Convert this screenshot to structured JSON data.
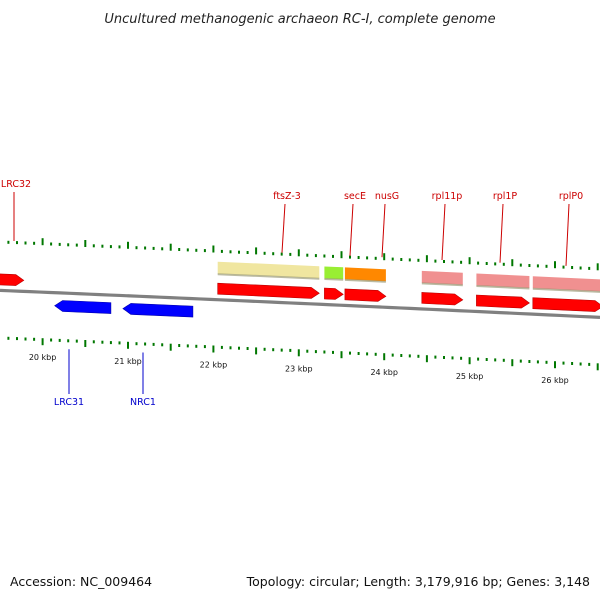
{
  "title": "Uncultured methanogenic archaeon RC-I, complete genome",
  "footer": {
    "accession": "Accession: NC_009464",
    "summary": "Topology: circular; Length: 3,179,916 bp; Genes: 3,148"
  },
  "colors": {
    "forward_gene": "#ff0000",
    "reverse_gene": "#0000ff",
    "forward_label": "#cc0000",
    "reverse_label": "#0000cc",
    "tick": "#007700",
    "backbone": "#808080",
    "upper_track": {
      "pale-yellow": "#f0e6a0",
      "yellow-green": "#99ee33",
      "orange": "#ff8800",
      "pink": "#f09090"
    }
  },
  "scale_labels": [
    "20 kbp",
    "21 kbp",
    "22 kbp",
    "23 kbp",
    "24 kbp",
    "25 kbp",
    "26 kbp"
  ],
  "genes": [
    {
      "name": "LRC32",
      "strand": "+",
      "start_kbp": 19.28,
      "end_kbp": 19.78,
      "labeled": true
    },
    {
      "name": "ftsZ-3",
      "strand": "+",
      "start_kbp": 22.05,
      "end_kbp": 23.24,
      "labeled": true
    },
    {
      "name": "secE",
      "strand": "+",
      "start_kbp": 23.3,
      "end_kbp": 23.52,
      "labeled": true
    },
    {
      "name": "nusG",
      "strand": "+",
      "start_kbp": 23.54,
      "end_kbp": 24.02,
      "labeled": true
    },
    {
      "name": "rpl11p",
      "strand": "+",
      "start_kbp": 24.44,
      "end_kbp": 24.92,
      "labeled": true
    },
    {
      "name": "rpl1P",
      "strand": "+",
      "start_kbp": 25.08,
      "end_kbp": 25.7,
      "labeled": true
    },
    {
      "name": "rplP0",
      "strand": "+",
      "start_kbp": 25.74,
      "end_kbp": 26.62,
      "labeled": true
    },
    {
      "name": "LRC31",
      "strand": "-",
      "start_kbp": 20.14,
      "end_kbp": 20.8,
      "labeled": true
    },
    {
      "name": "NRC1",
      "strand": "-",
      "start_kbp": 20.94,
      "end_kbp": 21.76,
      "labeled": true
    }
  ],
  "upper_features": [
    {
      "gene": "ftsZ-3",
      "color": "pale-yellow"
    },
    {
      "gene": "secE",
      "color": "yellow-green"
    },
    {
      "gene": "nusG",
      "color": "orange"
    },
    {
      "gene": "rpl11p",
      "color": "pink"
    },
    {
      "gene": "rpl1P",
      "color": "pink"
    },
    {
      "gene": "rplP0",
      "color": "pink"
    }
  ]
}
